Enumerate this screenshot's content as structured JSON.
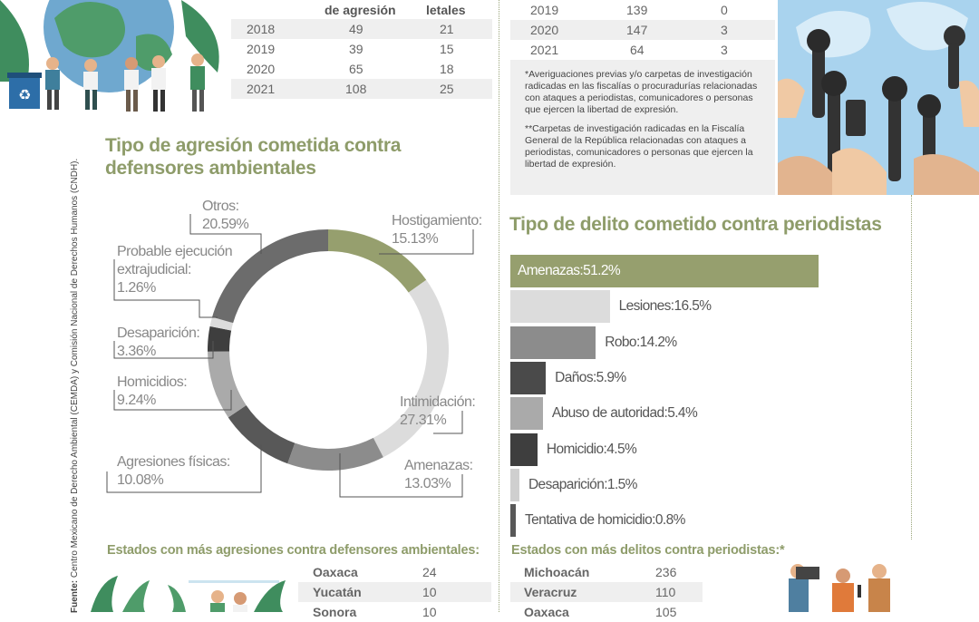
{
  "top_left_table": {
    "headers": [
      "de agresión",
      "letales"
    ],
    "rows": [
      {
        "year": "2018",
        "agresion": "49",
        "letales": "21"
      },
      {
        "year": "2019",
        "agresion": "39",
        "letales": "15"
      },
      {
        "year": "2020",
        "agresion": "65",
        "letales": "18"
      },
      {
        "year": "2021",
        "agresion": "108",
        "letales": "25"
      }
    ]
  },
  "top_right_table": {
    "rows": [
      {
        "year": "2019",
        "a": "139",
        "b": "0"
      },
      {
        "year": "2020",
        "a": "147",
        "b": "3"
      },
      {
        "year": "2021",
        "a": "64",
        "b": "3"
      }
    ]
  },
  "footnotes": {
    "note1": "*Averiguaciones previas y/o carpetas de investigación radicadas en las fiscalías o procuradurías relacionadas con ataques a periodistas, comunicadores o personas que ejercen la libertad de expresión.",
    "note2": "**Carpetas de investigación radicadas en la Fiscalía General de la República relacionadas con ataques a periodistas, comunicadores o personas que ejercen la libertad de expresión."
  },
  "source_label": "Fuente:",
  "source_text": "Centro Mexicano de Derecho Ambiental (CEMDA) y Comisión Nacional de Derechos Humanos (CNDH).",
  "colors": {
    "accent_green": "#8e9c6a",
    "gray_dark": "#555555",
    "gray_mid": "#8c8c8c",
    "gray_light": "#d9d9d9"
  },
  "chart_data": [
    {
      "type": "pie",
      "title": "Tipo de agresión cometida contra defensores ambientales",
      "slices": [
        {
          "label": "Hostigamiento:",
          "value": 15.13,
          "display": "15.13%",
          "color": "#969f6e"
        },
        {
          "label": "Intimidación:",
          "value": 27.31,
          "display": "27.31%",
          "color": "#dcdcdc"
        },
        {
          "label": "Amenazas:",
          "value": 13.03,
          "display": "13.03%",
          "color": "#8c8c8c"
        },
        {
          "label": "Agresiones físicas:",
          "value": 10.08,
          "display": "10.08%",
          "color": "#585858"
        },
        {
          "label": "Homicidios:",
          "value": 9.24,
          "display": "9.24%",
          "color": "#aaaaaa"
        },
        {
          "label": "Desaparición:",
          "value": 3.36,
          "display": "3.36%",
          "color": "#3e3e3e"
        },
        {
          "label": "Probable ejecución extrajudicial:",
          "value": 1.26,
          "display": "1.26%",
          "color": "#dcdcdc"
        },
        {
          "label": "Otros:",
          "value": 20.59,
          "display": "20.59%",
          "color": "#6c6c6c"
        }
      ]
    },
    {
      "type": "bar",
      "title": "Tipo de delito cometido contra periodistas",
      "categories": [
        "Amenazas:",
        "Lesiones:",
        "Robo:",
        "Daños:",
        "Abuso de autoridad:",
        "Homicidio:",
        "Desaparición:",
        "Tentativa de homicidio:"
      ],
      "values": [
        51.2,
        16.5,
        14.2,
        5.9,
        5.4,
        4.5,
        1.5,
        0.8
      ],
      "display": [
        "51.2%",
        "16.5%",
        "14.2%",
        "5.9%",
        "5.4%",
        "4.5%",
        "1.5%",
        "0.8%"
      ],
      "colors": [
        "#969f6e",
        "#dcdcdc",
        "#8c8c8c",
        "#4a4a4a",
        "#aaaaaa",
        "#3e3e3e",
        "#cfcfcf",
        "#585858"
      ]
    }
  ],
  "states_defensores": {
    "title": "Estados con más agresiones contra defensores ambientales:",
    "rows": [
      {
        "state": "Oaxaca",
        "value": "24"
      },
      {
        "state": "Yucatán",
        "value": "10"
      },
      {
        "state": "Sonora",
        "value": "10"
      }
    ]
  },
  "states_periodistas": {
    "title": "Estados con más delitos contra periodistas:*",
    "rows": [
      {
        "state": "Michoacán",
        "value": "236"
      },
      {
        "state": "Veracruz",
        "value": "110"
      },
      {
        "state": "Oaxaca",
        "value": "105"
      }
    ]
  }
}
